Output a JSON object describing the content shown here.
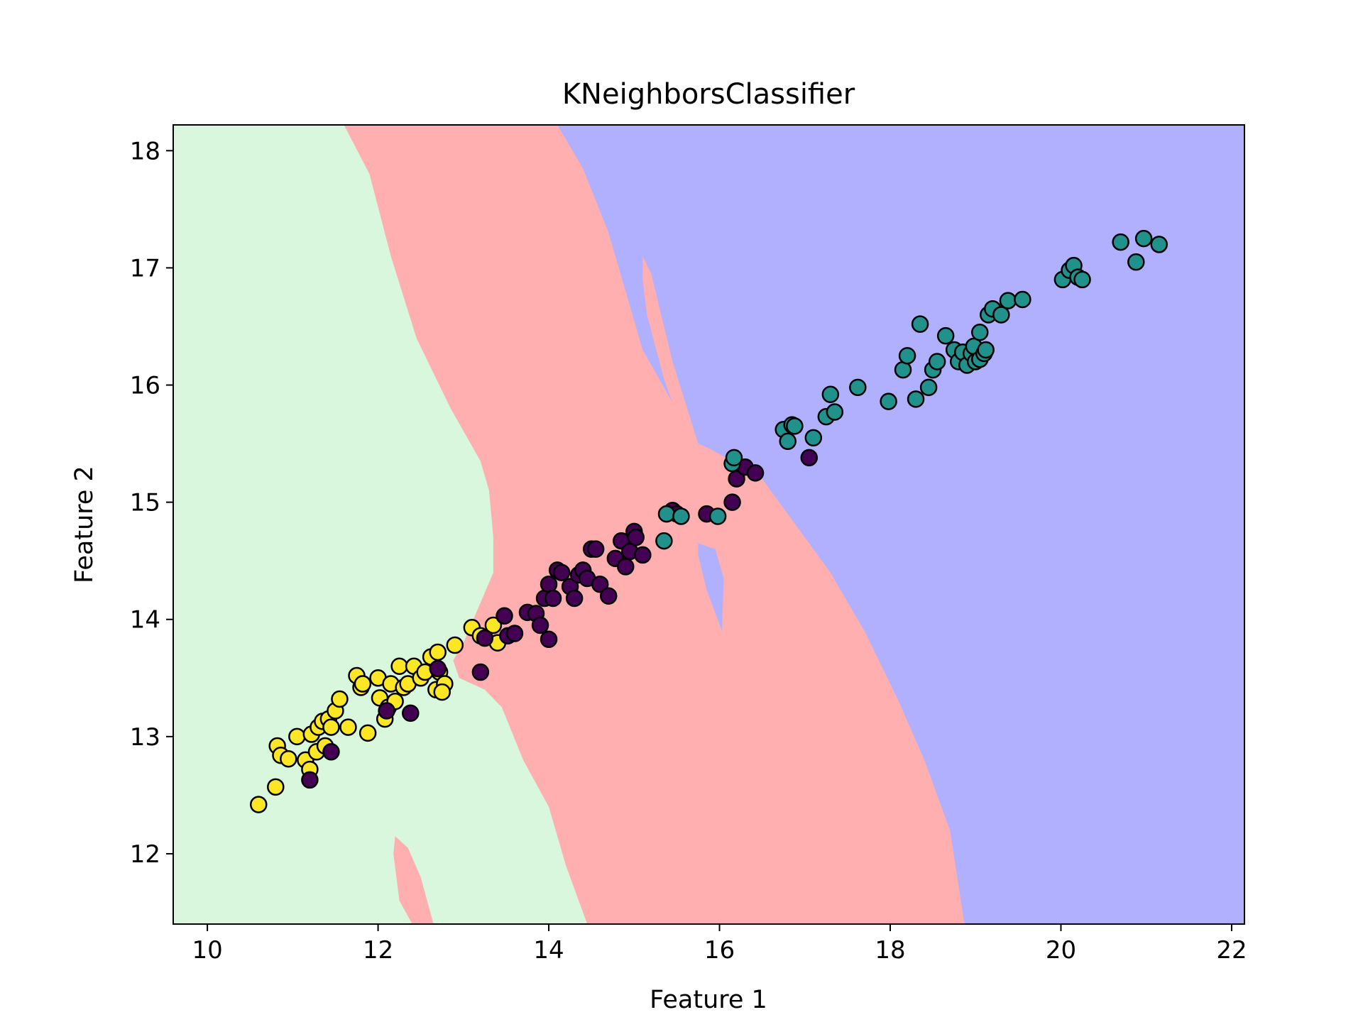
{
  "chart_data": {
    "type": "scatter",
    "title": "KNeighborsClassifier",
    "xlabel": "Feature 1",
    "ylabel": "Feature 2",
    "xlim": [
      9.6,
      22.15
    ],
    "ylim": [
      11.4,
      18.22
    ],
    "xticks": [
      10,
      12,
      14,
      16,
      18,
      20,
      22
    ],
    "yticks": [
      12,
      13,
      14,
      15,
      16,
      17,
      18
    ],
    "grid": false,
    "legend": "none",
    "background": "decision regions",
    "region_colors": {
      "left": "#d9f7dc",
      "middle": "#ffafaf",
      "right": "#b0b0ff"
    },
    "regions": {
      "left": [
        [
          9.6,
          18.22
        ],
        [
          11.6,
          18.22
        ],
        [
          11.9,
          17.8
        ],
        [
          12.15,
          17.1
        ],
        [
          12.45,
          16.4
        ],
        [
          12.85,
          15.8
        ],
        [
          13.2,
          15.35
        ],
        [
          13.3,
          15.1
        ],
        [
          13.35,
          14.7
        ],
        [
          13.35,
          14.4
        ],
        [
          13.0,
          13.8
        ],
        [
          12.88,
          13.65
        ],
        [
          12.95,
          13.5
        ],
        [
          13.25,
          13.4
        ],
        [
          13.45,
          13.25
        ],
        [
          13.7,
          12.8
        ],
        [
          14.0,
          12.4
        ],
        [
          14.2,
          11.9
        ],
        [
          14.45,
          11.4
        ],
        [
          9.6,
          11.4
        ]
      ],
      "middle_pocket": [
        [
          12.2,
          12.15
        ],
        [
          12.35,
          12.05
        ],
        [
          12.5,
          11.8
        ],
        [
          12.65,
          11.4
        ],
        [
          12.4,
          11.4
        ],
        [
          12.25,
          11.6
        ],
        [
          12.18,
          12.0
        ]
      ],
      "right": [
        [
          14.1,
          18.22
        ],
        [
          22.15,
          18.22
        ],
        [
          22.15,
          11.4
        ],
        [
          18.87,
          11.4
        ],
        [
          18.7,
          12.2
        ],
        [
          18.4,
          12.8
        ],
        [
          18.1,
          13.3
        ],
        [
          17.7,
          13.9
        ],
        [
          17.3,
          14.4
        ],
        [
          16.9,
          14.8
        ],
        [
          16.5,
          15.2
        ],
        [
          16.15,
          15.35
        ],
        [
          15.9,
          15.45
        ],
        [
          15.6,
          15.55
        ],
        [
          15.45,
          15.85
        ],
        [
          15.1,
          16.3
        ],
        [
          14.9,
          16.8
        ],
        [
          14.7,
          17.3
        ],
        [
          14.4,
          17.85
        ],
        [
          14.1,
          18.22
        ]
      ],
      "right_red_sliver": [
        [
          15.1,
          17.1
        ],
        [
          15.2,
          16.95
        ],
        [
          15.45,
          16.2
        ],
        [
          15.75,
          15.5
        ],
        [
          15.6,
          15.55
        ],
        [
          15.35,
          16.05
        ],
        [
          15.15,
          16.6
        ],
        [
          15.1,
          16.9
        ]
      ],
      "right_pocket": [
        [
          15.75,
          14.65
        ],
        [
          15.95,
          14.6
        ],
        [
          16.05,
          14.35
        ],
        [
          16.03,
          13.9
        ],
        [
          15.85,
          14.25
        ],
        [
          15.75,
          14.55
        ]
      ]
    },
    "series": [
      {
        "color": "#fde725",
        "points": [
          [
            10.6,
            12.42
          ],
          [
            10.8,
            12.57
          ],
          [
            10.82,
            12.92
          ],
          [
            10.86,
            12.84
          ],
          [
            10.95,
            12.81
          ],
          [
            11.05,
            13.0
          ],
          [
            11.15,
            12.8
          ],
          [
            11.22,
            13.02
          ],
          [
            11.2,
            12.72
          ],
          [
            11.28,
            12.87
          ],
          [
            11.3,
            13.08
          ],
          [
            11.35,
            13.13
          ],
          [
            11.38,
            12.92
          ],
          [
            11.42,
            13.15
          ],
          [
            11.45,
            13.08
          ],
          [
            11.5,
            13.22
          ],
          [
            11.55,
            13.32
          ],
          [
            11.65,
            13.08
          ],
          [
            11.75,
            13.52
          ],
          [
            11.8,
            13.42
          ],
          [
            11.82,
            13.45
          ],
          [
            11.88,
            13.03
          ],
          [
            12.0,
            13.5
          ],
          [
            12.02,
            13.33
          ],
          [
            12.08,
            13.15
          ],
          [
            12.12,
            13.25
          ],
          [
            12.15,
            13.45
          ],
          [
            12.2,
            13.3
          ],
          [
            12.25,
            13.6
          ],
          [
            12.3,
            13.42
          ],
          [
            12.35,
            13.45
          ],
          [
            12.42,
            13.6
          ],
          [
            12.5,
            13.5
          ],
          [
            12.55,
            13.55
          ],
          [
            12.62,
            13.68
          ],
          [
            12.68,
            13.4
          ],
          [
            12.7,
            13.72
          ],
          [
            12.72,
            13.55
          ],
          [
            12.78,
            13.45
          ],
          [
            12.75,
            13.38
          ],
          [
            12.9,
            13.78
          ],
          [
            13.1,
            13.93
          ],
          [
            13.2,
            13.86
          ],
          [
            13.35,
            13.95
          ],
          [
            13.4,
            13.8
          ]
        ]
      },
      {
        "color": "#440154",
        "points": [
          [
            11.2,
            12.63
          ],
          [
            11.45,
            12.87
          ],
          [
            12.1,
            13.22
          ],
          [
            12.38,
            13.2
          ],
          [
            12.7,
            13.58
          ],
          [
            13.2,
            13.55
          ],
          [
            13.25,
            13.84
          ],
          [
            13.48,
            14.03
          ],
          [
            13.52,
            13.86
          ],
          [
            13.6,
            13.88
          ],
          [
            13.75,
            14.06
          ],
          [
            13.85,
            14.05
          ],
          [
            13.9,
            13.95
          ],
          [
            13.95,
            14.18
          ],
          [
            14.0,
            14.3
          ],
          [
            14.0,
            13.83
          ],
          [
            14.05,
            14.18
          ],
          [
            14.1,
            14.42
          ],
          [
            14.15,
            14.4
          ],
          [
            14.25,
            14.28
          ],
          [
            14.3,
            14.18
          ],
          [
            14.35,
            14.38
          ],
          [
            14.4,
            14.42
          ],
          [
            14.45,
            14.35
          ],
          [
            14.5,
            14.6
          ],
          [
            14.55,
            14.6
          ],
          [
            14.6,
            14.3
          ],
          [
            14.7,
            14.2
          ],
          [
            14.78,
            14.52
          ],
          [
            14.85,
            14.67
          ],
          [
            14.9,
            14.45
          ],
          [
            14.95,
            14.58
          ],
          [
            15.0,
            14.75
          ],
          [
            15.02,
            14.7
          ],
          [
            15.1,
            14.55
          ],
          [
            15.45,
            14.93
          ],
          [
            15.5,
            14.9
          ],
          [
            15.85,
            14.9
          ],
          [
            16.15,
            15.0
          ],
          [
            16.2,
            15.2
          ],
          [
            16.3,
            15.3
          ],
          [
            16.42,
            15.25
          ],
          [
            17.05,
            15.38
          ]
        ]
      },
      {
        "color": "#21918c",
        "points": [
          [
            15.35,
            14.67
          ],
          [
            15.38,
            14.9
          ],
          [
            15.55,
            14.88
          ],
          [
            15.98,
            14.88
          ],
          [
            16.15,
            15.33
          ],
          [
            16.17,
            15.38
          ],
          [
            16.75,
            15.62
          ],
          [
            16.8,
            15.52
          ],
          [
            16.85,
            15.66
          ],
          [
            16.88,
            15.65
          ],
          [
            17.1,
            15.55
          ],
          [
            17.25,
            15.73
          ],
          [
            17.3,
            15.92
          ],
          [
            17.35,
            15.77
          ],
          [
            17.62,
            15.98
          ],
          [
            17.98,
            15.86
          ],
          [
            18.15,
            16.13
          ],
          [
            18.2,
            16.25
          ],
          [
            18.3,
            15.88
          ],
          [
            18.35,
            16.52
          ],
          [
            18.45,
            15.98
          ],
          [
            18.5,
            16.13
          ],
          [
            18.55,
            16.2
          ],
          [
            18.65,
            16.42
          ],
          [
            18.75,
            16.3
          ],
          [
            18.8,
            16.2
          ],
          [
            18.85,
            16.28
          ],
          [
            18.9,
            16.17
          ],
          [
            18.95,
            16.27
          ],
          [
            18.98,
            16.33
          ],
          [
            19.0,
            16.2
          ],
          [
            19.05,
            16.22
          ],
          [
            19.05,
            16.45
          ],
          [
            19.1,
            16.27
          ],
          [
            19.12,
            16.3
          ],
          [
            19.15,
            16.6
          ],
          [
            19.2,
            16.65
          ],
          [
            19.3,
            16.6
          ],
          [
            19.38,
            16.72
          ],
          [
            19.55,
            16.73
          ],
          [
            20.02,
            16.9
          ],
          [
            20.1,
            16.98
          ],
          [
            20.15,
            17.02
          ],
          [
            20.2,
            16.92
          ],
          [
            20.25,
            16.9
          ],
          [
            20.7,
            17.22
          ],
          [
            20.88,
            17.05
          ],
          [
            20.97,
            17.25
          ],
          [
            21.15,
            17.2
          ]
        ]
      }
    ]
  }
}
